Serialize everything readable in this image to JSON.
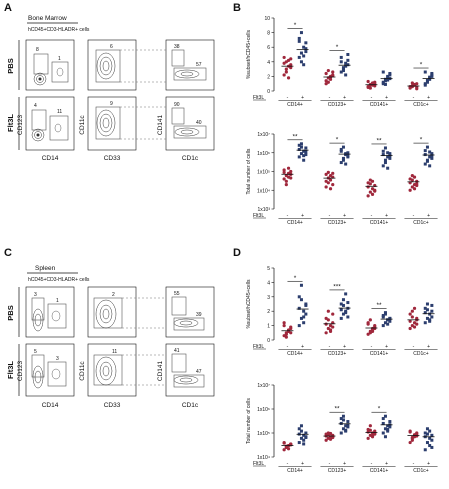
{
  "panels": {
    "A": {
      "letter": "A",
      "tissue": "Bone Marrow",
      "gate_note": "hCD45+CD3-HLADR+ cells",
      "row_labels": [
        "PBS",
        "Flt3L"
      ],
      "x_labels": [
        "CD14",
        "CD33",
        "CD1c"
      ],
      "y_labels": [
        "CD123",
        "CD11c",
        "CD141"
      ],
      "gate_values": {
        "pbs": [
          "8",
          "1",
          "6",
          "38",
          "57"
        ],
        "flt3l": [
          "4",
          "11",
          "9",
          "90",
          "40"
        ]
      }
    },
    "C": {
      "letter": "C",
      "tissue": "Spleen",
      "gate_note": "hCD45+CD3-HLADR+ cells",
      "row_labels": [
        "PBS",
        "Flt3L"
      ],
      "x_labels": [
        "CD14",
        "CD33",
        "CD1c"
      ],
      "y_labels": [
        "CD123",
        "CD11c",
        "CD141"
      ],
      "gate_values": {
        "pbs": [
          "3",
          "1",
          "2",
          "55",
          "39"
        ],
        "flt3l": [
          "5",
          "3",
          "11",
          "41",
          "47"
        ]
      }
    },
    "B": {
      "letter": "B"
    },
    "D": {
      "letter": "D"
    }
  },
  "chart_data": [
    {
      "id": "B-top",
      "type": "scatter",
      "ylabel": "%subset/hCD45+cells",
      "ylim": [
        0,
        10
      ],
      "yticks": [
        "0",
        "2",
        "4",
        "6",
        "8",
        "10"
      ],
      "categories": [
        "CD14+",
        "CD123+",
        "CD141+",
        "CD1c+"
      ],
      "flt3l_label": "Flt3L",
      "group_signs": [
        "-",
        "+"
      ],
      "significance": [
        "*",
        "*",
        "",
        "*"
      ],
      "series": [
        {
          "values": [
            [
              2.2,
              3.0,
              3.4,
              3.6,
              3.8,
              4.0,
              4.2,
              4.4,
              4.6,
              2.6,
              1.8,
              3.2
            ],
            [
              4.6,
              5.2,
              6.0,
              6.6,
              7.2,
              4.0,
              3.6,
              5.8,
              6.8,
              8.0,
              4.8,
              5.4
            ]
          ]
        },
        {
          "values": [
            [
              1.4,
              1.8,
              2.0,
              2.2,
              2.4,
              1.2,
              1.6,
              2.6,
              1.0,
              2.8,
              1.9,
              2.1
            ],
            [
              2.6,
              3.2,
              3.8,
              4.2,
              4.6,
              3.0,
              2.2,
              3.6,
              4.0,
              2.8,
              3.4,
              5.0
            ]
          ]
        },
        {
          "values": [
            [
              0.6,
              0.8,
              1.0,
              1.2,
              0.5,
              0.9,
              1.1,
              0.7,
              1.3,
              0.4,
              0.8,
              1.0
            ],
            [
              1.2,
              1.6,
              2.0,
              2.4,
              1.0,
              1.4,
              1.8,
              2.2,
              2.6,
              0.9,
              1.5,
              1.7
            ]
          ]
        },
        {
          "values": [
            [
              0.4,
              0.6,
              0.8,
              1.0,
              0.5,
              0.7,
              0.9,
              0.3,
              0.6,
              1.1,
              0.8,
              0.5
            ],
            [
              1.0,
              1.4,
              1.8,
              2.2,
              2.6,
              1.2,
              1.6,
              2.0,
              0.8,
              1.5,
              1.9,
              2.4
            ]
          ]
        }
      ]
    },
    {
      "id": "B-bottom",
      "type": "scatter",
      "scale": "log",
      "ylabel": "Total number of cells",
      "ylim": [
        1000,
        10000000
      ],
      "yticks": [
        "1x10³",
        "1x10⁴",
        "1x10⁵",
        "1x10⁶",
        "1x10⁷"
      ],
      "categories": [
        "CD14+",
        "CD123+",
        "CD141+",
        "CD1c+"
      ],
      "flt3l_label": "Flt3L",
      "group_signs": [
        "-",
        "+"
      ],
      "significance": [
        "**",
        "*",
        "**",
        "*"
      ],
      "series": [
        {
          "values": [
            [
              40000,
              60000,
              80000,
              100000,
              120000,
              30000,
              50000,
              70000,
              90000,
              20000,
              150000,
              45000
            ],
            [
              600000,
              900000,
              1200000,
              1800000,
              2500000,
              3000000,
              400000,
              800000,
              1500000,
              2000000,
              700000,
              1100000
            ]
          ]
        },
        {
          "values": [
            [
              15000,
              25000,
              35000,
              50000,
              70000,
              90000,
              12000,
              20000,
              30000,
              45000,
              60000,
              80000
            ],
            [
              300000,
              500000,
              800000,
              1000000,
              1500000,
              2000000,
              250000,
              700000,
              1200000,
              400000,
              900000,
              600000
            ]
          ]
        },
        {
          "values": [
            [
              5000,
              8000,
              12000,
              18000,
              25000,
              35000,
              6000,
              10000,
              15000,
              22000,
              30000,
              9000
            ],
            [
              200000,
              400000,
              600000,
              900000,
              1200000,
              1800000,
              150000,
              500000,
              800000,
              300000,
              1000000,
              700000
            ]
          ]
        },
        {
          "values": [
            [
              10000,
              15000,
              20000,
              30000,
              40000,
              60000,
              12000,
              18000,
              25000,
              35000,
              50000,
              22000
            ],
            [
              250000,
              400000,
              600000,
              900000,
              1300000,
              2000000,
              200000,
              500000,
              800000,
              350000,
              1100000,
              700000
            ]
          ]
        }
      ]
    },
    {
      "id": "D-top",
      "type": "scatter",
      "ylabel": "%subset/hCD45+cells",
      "ylim": [
        0,
        5
      ],
      "yticks": [
        "0",
        "1",
        "2",
        "3",
        "4",
        "5"
      ],
      "categories": [
        "CD14+",
        "CD123+",
        "CD141+",
        "CD1c+"
      ],
      "flt3l_label": "Flt3L",
      "group_signs": [
        "-",
        "+"
      ],
      "significance": [
        "*",
        "***",
        "**",
        ""
      ],
      "series": [
        {
          "values": [
            [
              0.3,
              0.5,
              0.6,
              0.8,
              1.0,
              0.4,
              0.7,
              0.9,
              1.2,
              0.2,
              0.6,
              0.5
            ],
            [
              1.0,
              1.5,
              2.0,
              2.5,
              3.0,
              3.8,
              1.2,
              1.8,
              2.2,
              2.8,
              1.6,
              2.4
            ]
          ]
        },
        {
          "values": [
            [
              0.5,
              0.8,
              1.0,
              1.2,
              1.5,
              2.0,
              0.6,
              0.9,
              1.1,
              1.4,
              0.7,
              1.8
            ],
            [
              1.5,
              1.8,
              2.0,
              2.2,
              2.5,
              2.8,
              3.2,
              1.6,
              2.1,
              2.4,
              1.9,
              2.6
            ]
          ]
        },
        {
          "values": [
            [
              0.4,
              0.6,
              0.8,
              1.0,
              1.2,
              0.5,
              0.7,
              0.9,
              1.1,
              1.4,
              0.6,
              0.8
            ],
            [
              1.0,
              1.2,
              1.4,
              1.5,
              1.6,
              1.8,
              1.1,
              1.3,
              1.7,
              1.9,
              1.4,
              1.5
            ]
          ]
        },
        {
          "values": [
            [
              0.8,
              1.0,
              1.2,
              1.5,
              1.8,
              2.0,
              0.9,
              1.1,
              1.3,
              1.6,
              2.2,
              1.4
            ],
            [
              1.2,
              1.5,
              1.8,
              2.0,
              2.2,
              2.5,
              1.3,
              1.6,
              1.9,
              2.1,
              1.4,
              2.4
            ]
          ]
        }
      ]
    },
    {
      "id": "D-bottom",
      "type": "scatter",
      "scale": "log",
      "ylabel": "Total number of cells",
      "ylim": [
        10000,
        10000000
      ],
      "yticks": [
        "1x10⁴",
        "1x10⁵",
        "1x10⁶",
        "1x10⁷"
      ],
      "categories": [
        "CD14+",
        "CD123+",
        "CD141+",
        "CD1c+"
      ],
      "flt3l_label": "Flt3L",
      "group_signs": [
        "-",
        "+"
      ],
      "significance": [
        "",
        "**",
        "*",
        ""
      ],
      "series": [
        {
          "values": [
            [
              20000,
              25000,
              30000,
              35000,
              40000,
              28000,
              22000,
              32000,
              38000,
              26000,
              30000,
              34000
            ],
            [
              40000,
              60000,
              80000,
              100000,
              150000,
              200000,
              50000,
              70000,
              90000,
              120000,
              35000,
              65000
            ]
          ]
        },
        {
          "values": [
            [
              50000,
              60000,
              70000,
              80000,
              90000,
              100000,
              55000,
              65000,
              75000,
              85000,
              95000,
              70000
            ],
            [
              100000,
              150000,
              200000,
              300000,
              400000,
              500000,
              120000,
              180000,
              250000,
              350000,
              130000,
              220000
            ]
          ]
        },
        {
          "values": [
            [
              60000,
              80000,
              100000,
              120000,
              140000,
              200000,
              70000,
              90000,
              110000,
              130000,
              75000,
              95000
            ],
            [
              100000,
              150000,
              200000,
              300000,
              400000,
              500000,
              120000,
              180000,
              250000,
              70000,
              140000,
              220000
            ]
          ]
        },
        {
          "values": [
            [
              40000,
              60000,
              80000,
              100000,
              120000,
              50000,
              70000,
              90000,
              110000,
              65000,
              85000,
              75000
            ],
            [
              20000,
              40000,
              60000,
              80000,
              100000,
              150000,
              30000,
              50000,
              70000,
              90000,
              120000,
              25000
            ]
          ]
        }
      ]
    }
  ],
  "colors": {
    "pbs": "#a0283c",
    "flt3l": "#2c3e6e",
    "contour": "#333333",
    "gate": "#555555"
  }
}
